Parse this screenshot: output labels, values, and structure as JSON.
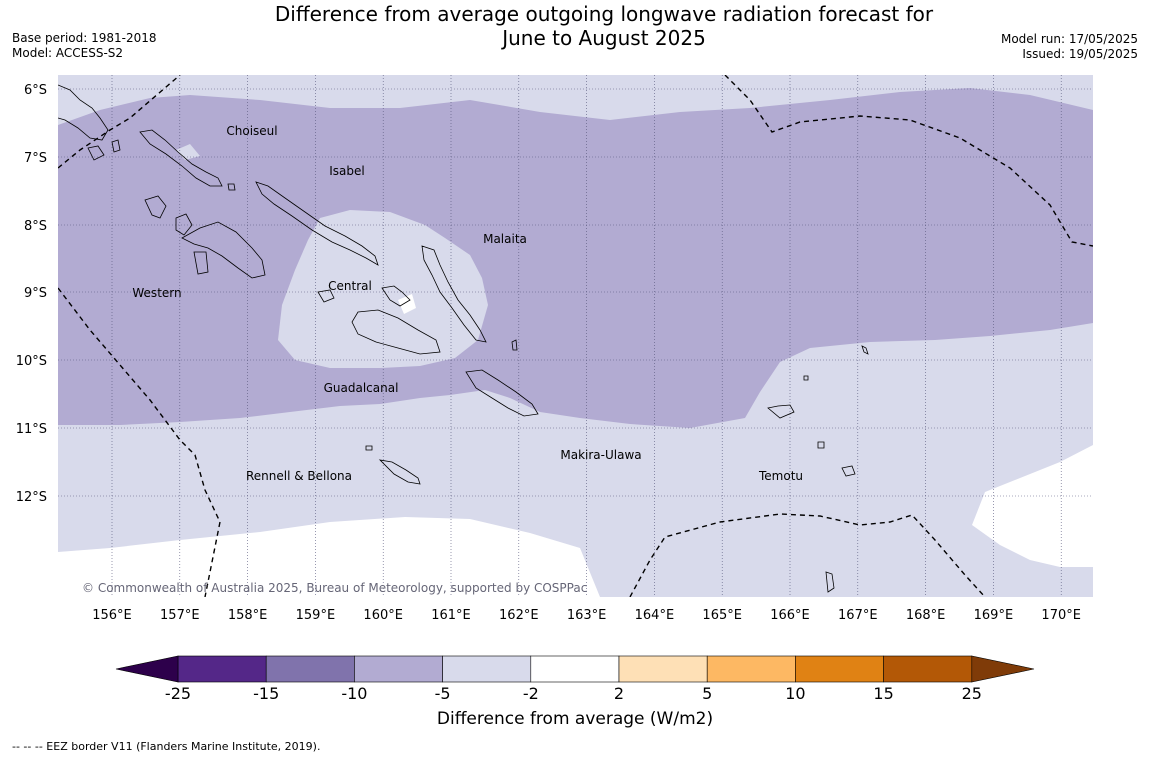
{
  "header": {
    "title_line1": "Difference from average outgoing longwave radiation forecast for",
    "title_line2": "June to August 2025",
    "base_period": "Base period: 1981-2018",
    "model": "Model: ACCESS-S2",
    "model_run": "Model run: 17/05/2025",
    "issued": "Issued: 19/05/2025"
  },
  "map": {
    "copyright": "© Commonwealth of Australia 2025, Bureau of Meteorology, supported by COSPPac",
    "lat_labels": [
      "6°S",
      "7°S",
      "8°S",
      "9°S",
      "10°S",
      "11°S",
      "12°S"
    ],
    "lon_labels": [
      "156°E",
      "157°E",
      "158°E",
      "159°E",
      "160°E",
      "161°E",
      "162°E",
      "163°E",
      "164°E",
      "165°E",
      "166°E",
      "167°E",
      "168°E",
      "169°E",
      "170°E"
    ],
    "regions": [
      "Choiseul",
      "Isabel",
      "Malaita",
      "Western",
      "Central",
      "Guadalcanal",
      "Makira-Ulawa",
      "Rennell & Bellona",
      "Temotu"
    ]
  },
  "colorbar": {
    "label": "Difference from average (W/m2)",
    "ticks": [
      "-25",
      "-15",
      "-10",
      "-5",
      "-2",
      "2",
      "5",
      "10",
      "15",
      "25"
    ],
    "colors": {
      "below_-25": "#2d004b",
      "-25_-15": "#542788",
      "-15_-10": "#8073ac",
      "-10_-5": "#b2abd2",
      "-5_-2": "#d8daeb",
      "-2_2": "#ffffff",
      "2_5": "#fee0b6",
      "5_10": "#fdb863",
      "10_15": "#e08214",
      "15_25": "#b35806",
      "above_25": "#7f3b08"
    }
  },
  "footer": "--  --  -- EEZ border V11 (Flanders Marine Institute, 2019)."
}
